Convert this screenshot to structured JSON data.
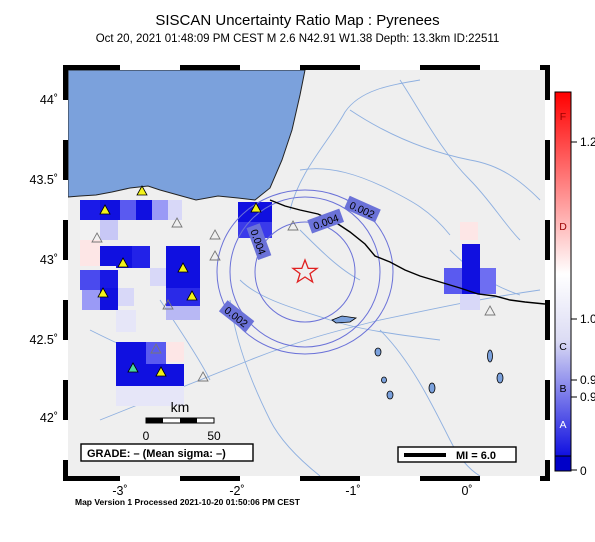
{
  "header": {
    "title": "SISCAN Uncertainty Ratio Map : Pyrenees",
    "subtitle": "Oct 20, 2021 01:48:09 PM CEST   M 2.6   N42.91 W1.38   Depth: 13.3km   ID:22511"
  },
  "map": {
    "lat_ticks": [
      "44˚",
      "43.5˚",
      "43˚",
      "42.5˚",
      "42˚"
    ],
    "lon_ticks": [
      "-3˚",
      "-2˚",
      "-1˚",
      "0˚"
    ],
    "contour_labels": [
      "0.002",
      "0.004",
      "0.004",
      "0.002"
    ],
    "scale_bar": {
      "unit": "km",
      "start": "0",
      "end": "50"
    },
    "grade_box": "GRADE: – (Mean sigma: –)",
    "mi_legend": "MI = 6.0",
    "colors": {
      "sea": "#7ba1dc",
      "land": "#efefef",
      "epicenter": "#e02020",
      "contour": "#6b72d8"
    }
  },
  "colorbar": {
    "grade_letters": [
      "F",
      "D",
      "C",
      "B",
      "A"
    ],
    "value_labels": [
      "1.2",
      "1.0",
      "0.9",
      "0.9",
      "0"
    ],
    "colors": {
      "top": "#ff0000",
      "middle": "#ffffff",
      "bottom": "#0000d0"
    }
  },
  "footer": "Map Version 1 Processed 2021-10-20 01:50:06 PM CEST"
}
